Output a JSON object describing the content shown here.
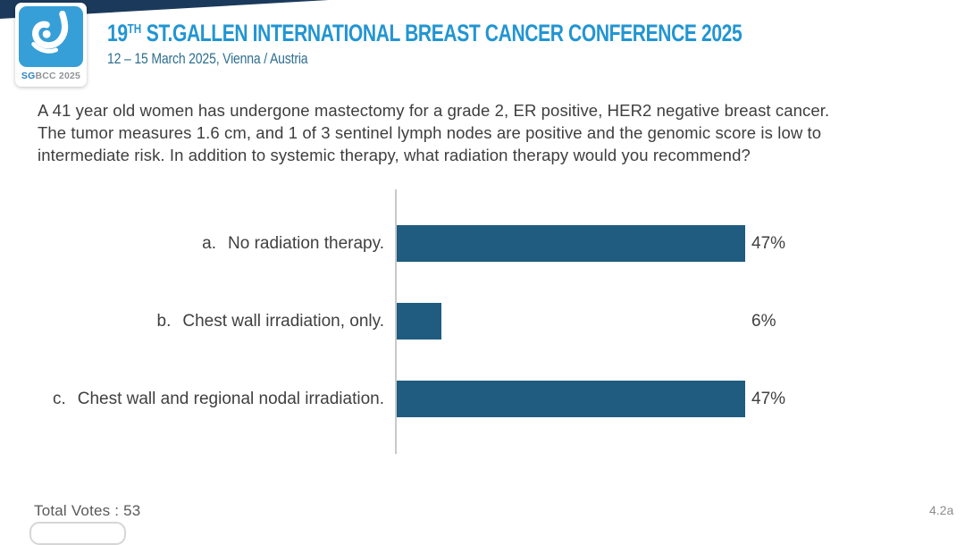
{
  "header": {
    "logo": {
      "caption_bold": "SG",
      "caption_rest": "BCC 2025",
      "square_color": "#379fd7",
      "glyph": "sgbcc-ribbon-icon"
    },
    "title_number": "19",
    "title_sup": "TH",
    "title_rest": " ST.GALLEN INTERNATIONAL BREAST CANCER CONFERENCE 2025",
    "subtitle": "12 – 15 March 2025, Vienna / Austria",
    "title_color": "#2295d2",
    "subtitle_color": "#2f6f8f",
    "wedge_color": "#1b3a5b"
  },
  "question": "A 41 year old women has undergone mastectomy for a grade 2, ER positive, HER2 negative breast cancer. The tumor measures 1.6 cm, and 1 of 3 sentinel lymph nodes are positive and the genomic score is low to intermediate risk. In addition to systemic therapy, what radiation therapy would you recommend?",
  "chart_data": {
    "type": "bar",
    "orientation": "horizontal",
    "title": "",
    "categories": [
      "a. No radiation therapy.",
      "b. Chest wall irradiation, only.",
      "c. Chest wall and regional nodal irradiation."
    ],
    "option_prefixes": [
      "a.",
      "b.",
      "c."
    ],
    "option_texts": [
      "No radiation therapy.",
      "Chest wall irradiation, only.",
      "Chest wall and regional nodal irradiation."
    ],
    "values": [
      47,
      6,
      47
    ],
    "value_labels": [
      "47%",
      "6%",
      "47%"
    ],
    "unit": "%",
    "xlim": [
      0,
      100
    ],
    "grid": false,
    "legend": false,
    "bar_color": "#1f5c80",
    "axis_color": "#c9c9c9"
  },
  "footer": {
    "total_votes": "Total Votes : 53",
    "slide_code": "4.2a"
  }
}
